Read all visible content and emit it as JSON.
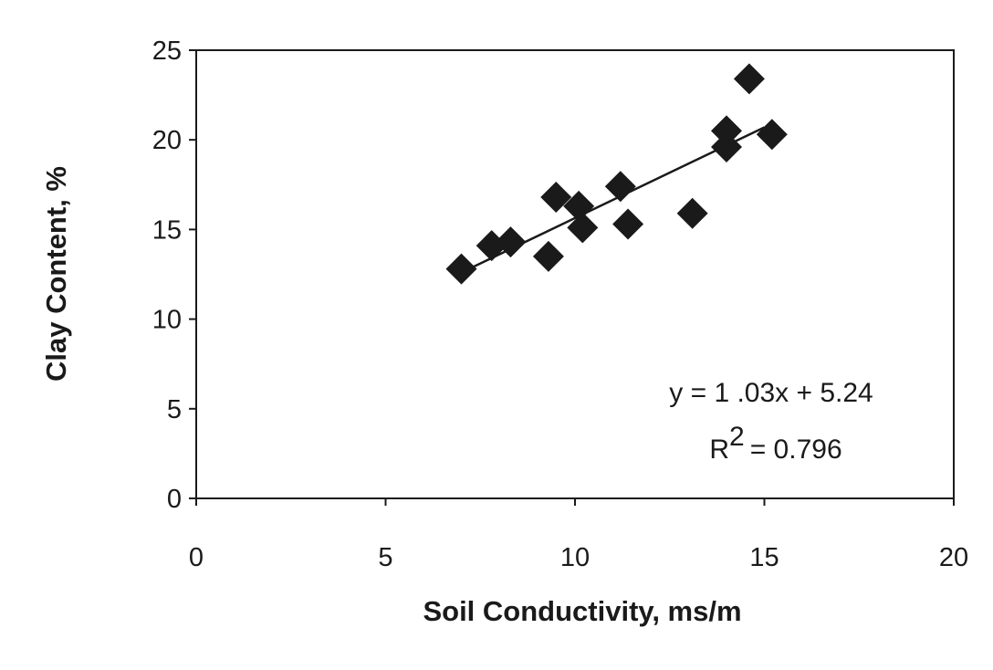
{
  "chart_data": {
    "type": "scatter",
    "x_label": "Soil Conductivity, ms/m",
    "y_label": "Clay Content, %",
    "series": [
      {
        "x": [
          7.0,
          7.8,
          8.3,
          9.3,
          9.5,
          10.1,
          10.2,
          11.2,
          11.4,
          13.1,
          14.0,
          14.0,
          14.6,
          15.2
        ],
        "values": [
          12.8,
          14.1,
          14.3,
          13.5,
          16.8,
          16.3,
          15.1,
          17.4,
          15.3,
          15.9,
          19.6,
          20.5,
          23.4,
          20.3
        ],
        "color": "#1a1a1a"
      }
    ],
    "trendline": {
      "x": [
        7.2,
        15.0
      ],
      "values": [
        12.8,
        20.7
      ],
      "color": "#1a1a1a"
    },
    "equation": "y = 1 .03x + 5.24",
    "r_squared": {
      "base": "R",
      "sup": "2",
      "rest": "= 0.796"
    },
    "xlim": [
      0,
      20
    ],
    "xticks": [
      0,
      5,
      10,
      15,
      20
    ],
    "ylim": [
      0,
      25
    ],
    "yticks": [
      0,
      5,
      10,
      15,
      20,
      25
    ]
  }
}
